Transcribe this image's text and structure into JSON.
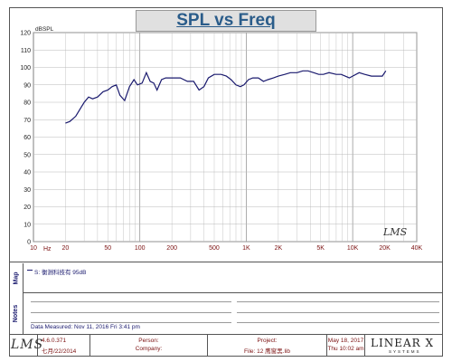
{
  "chart_data": {
    "type": "line",
    "title": "SPL vs Freq",
    "ylabel": "dBSPL",
    "xlabel": "Hz",
    "x_scale": "log",
    "xlim": [
      10,
      40000
    ],
    "ylim": [
      0,
      120
    ],
    "y_ticks": [
      0,
      10,
      20,
      30,
      40,
      50,
      60,
      70,
      80,
      90,
      100,
      110,
      120
    ],
    "x_ticks": [
      {
        "value": 10,
        "label": "10"
      },
      {
        "value": 20,
        "label": "20"
      },
      {
        "value": 50,
        "label": "50"
      },
      {
        "value": 100,
        "label": "100"
      },
      {
        "value": 200,
        "label": "200"
      },
      {
        "value": 500,
        "label": "500"
      },
      {
        "value": 1000,
        "label": "1K"
      },
      {
        "value": 2000,
        "label": "2K"
      },
      {
        "value": 5000,
        "label": "5K"
      },
      {
        "value": 10000,
        "label": "10K"
      },
      {
        "value": 20000,
        "label": "20K"
      },
      {
        "value": 40000,
        "label": "40K"
      }
    ],
    "grid": true,
    "series": [
      {
        "name": "S: 衡淵科技有 95dB",
        "color": "#1a1a6e",
        "points": [
          [
            20,
            68
          ],
          [
            22,
            69
          ],
          [
            25,
            72
          ],
          [
            28,
            77
          ],
          [
            30,
            80
          ],
          [
            33,
            83
          ],
          [
            36,
            82
          ],
          [
            40,
            83
          ],
          [
            45,
            86
          ],
          [
            50,
            87
          ],
          [
            55,
            89
          ],
          [
            60,
            90
          ],
          [
            65,
            84
          ],
          [
            72,
            81
          ],
          [
            80,
            89
          ],
          [
            88,
            93
          ],
          [
            95,
            90
          ],
          [
            105,
            91
          ],
          [
            115,
            97
          ],
          [
            125,
            92
          ],
          [
            135,
            91
          ],
          [
            145,
            87
          ],
          [
            160,
            93
          ],
          [
            175,
            94
          ],
          [
            200,
            94
          ],
          [
            240,
            94
          ],
          [
            280,
            92
          ],
          [
            320,
            92
          ],
          [
            360,
            87
          ],
          [
            400,
            89
          ],
          [
            440,
            94
          ],
          [
            500,
            96
          ],
          [
            580,
            96
          ],
          [
            650,
            95
          ],
          [
            720,
            93
          ],
          [
            800,
            90
          ],
          [
            880,
            89
          ],
          [
            950,
            90
          ],
          [
            1050,
            93
          ],
          [
            1150,
            94
          ],
          [
            1300,
            94
          ],
          [
            1450,
            92
          ],
          [
            1600,
            93
          ],
          [
            1800,
            94
          ],
          [
            2000,
            95
          ],
          [
            2300,
            96
          ],
          [
            2600,
            97
          ],
          [
            3000,
            97
          ],
          [
            3400,
            98
          ],
          [
            3800,
            98
          ],
          [
            4300,
            97
          ],
          [
            4800,
            96
          ],
          [
            5300,
            96
          ],
          [
            6000,
            97
          ],
          [
            7000,
            96
          ],
          [
            7800,
            96
          ],
          [
            8500,
            95
          ],
          [
            9300,
            94
          ],
          [
            10000,
            95
          ],
          [
            11500,
            97
          ],
          [
            13000,
            96
          ],
          [
            15000,
            95
          ],
          [
            17000,
            95
          ],
          [
            19000,
            95
          ],
          [
            20500,
            98
          ]
        ]
      }
    ]
  },
  "chart_labels": {
    "unit_y": "dBSPL",
    "unit_x": "Hz"
  },
  "map": {
    "label": "Map",
    "legend": "S: 衡淵科技有 95dB"
  },
  "notes": {
    "label": "Notes",
    "date_measured": "Data Measured: Nov 11, 2016 Fri 3:41 pm"
  },
  "footer": {
    "logo": "LMS",
    "version": "4.6.0.371",
    "version_date": "七月/22/2014",
    "person_label": "Person:",
    "company_label": "Company:",
    "project_label": "Project:",
    "file_label": "File: 12 鹰窗黑.lib",
    "date": "May 18, 2017",
    "time": "Thu 10:02 am",
    "brand": "LINEAR X",
    "brand_sub": "SYSTEMS"
  },
  "chart_logo": "LMS"
}
